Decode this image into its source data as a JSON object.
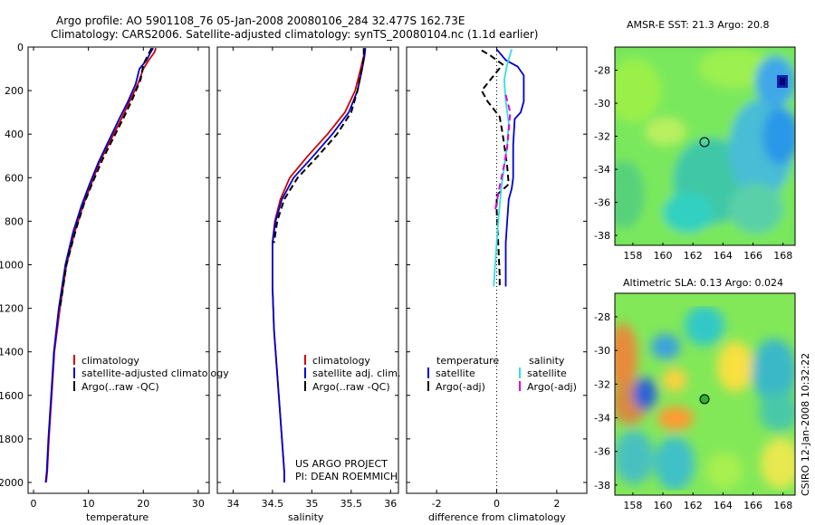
{
  "header": {
    "title_line1": "Argo profile: AO 5901108_76 05-Jan-2008 20080106_284 32.477S 162.73E",
    "title_line2": "Climatology: CARS2006. Satellite-adjusted climatology: synTS_20080104.nc (1.1d earlier)"
  },
  "side_credit": "CSIRO 12-Jan-2008 10:32:22",
  "project": {
    "line1": "US ARGO PROJECT",
    "line2": "PI: DEAN ROEMMICH"
  },
  "colors": {
    "red": "#d00000",
    "blue": "#0000d0",
    "black": "#000000",
    "cyan": "#30e0e0",
    "magenta": "#e000e0"
  },
  "chart_data": [
    {
      "type": "line",
      "xlabel": "temperature",
      "xlim": [
        -1,
        32
      ],
      "ylim": [
        2050,
        0
      ],
      "xticks": [
        0,
        10,
        20,
        30
      ],
      "yticks": [
        0,
        200,
        400,
        600,
        800,
        1000,
        1200,
        1400,
        1600,
        1800,
        2000
      ],
      "legend": [
        "climatology",
        "satellite-adjusted climatology",
        "Argo(..raw -QC)"
      ],
      "series": [
        {
          "name": "climatology",
          "color": "#d00000",
          "style": "solid",
          "x": [
            22.3,
            22.0,
            21.0,
            20.0,
            19.0,
            17.5,
            16.0,
            14.0,
            12.0,
            10.5,
            9.0,
            7.5,
            6.0,
            4.8,
            3.8,
            3.3,
            2.8,
            2.5,
            2.3
          ],
          "y": [
            5,
            25,
            60,
            100,
            170,
            250,
            330,
            430,
            530,
            630,
            730,
            850,
            1000,
            1200,
            1400,
            1600,
            1800,
            1950,
            2000
          ]
        },
        {
          "name": "satellite-adjusted climatology",
          "color": "#0000d0",
          "style": "solid",
          "x": [
            21.8,
            21.3,
            20.6,
            19.3,
            18.6,
            17.2,
            15.6,
            13.7,
            11.8,
            10.2,
            8.7,
            7.2,
            5.8,
            4.6,
            3.7,
            3.2,
            2.7,
            2.4,
            2.2
          ],
          "y": [
            5,
            25,
            60,
            100,
            170,
            250,
            330,
            430,
            530,
            630,
            730,
            850,
            1000,
            1200,
            1400,
            1600,
            1800,
            1950,
            2000
          ]
        },
        {
          "name": "Argo(..raw -QC)",
          "color": "#000000",
          "style": "dashed",
          "x": [
            21.5,
            21.0,
            20.5,
            20.0,
            19.5,
            18.0,
            16.5,
            14.5,
            12.5,
            10.8,
            9.2,
            7.7,
            6.0,
            4.8
          ],
          "y": [
            5,
            30,
            55,
            80,
            150,
            240,
            320,
            420,
            520,
            620,
            720,
            840,
            1000,
            1200
          ]
        }
      ]
    },
    {
      "type": "line",
      "xlabel": "salinity",
      "xlim": [
        33.8,
        36.1
      ],
      "ylim": [
        2050,
        0
      ],
      "xticks": [
        34,
        34.5,
        35,
        35.5,
        36
      ],
      "legend": [
        "climatology",
        "satellite adj. clim.",
        "Argo(..raw -QC)"
      ],
      "series": [
        {
          "name": "climatology",
          "color": "#d00000",
          "style": "solid",
          "x": [
            35.67,
            35.66,
            35.62,
            35.55,
            35.42,
            35.2,
            34.95,
            34.72,
            34.6,
            34.53,
            34.5,
            34.5,
            34.52,
            34.56,
            34.6,
            34.63,
            34.65,
            34.65
          ],
          "y": [
            5,
            40,
            100,
            200,
            300,
            400,
            500,
            600,
            700,
            800,
            900,
            1100,
            1300,
            1500,
            1700,
            1850,
            1950,
            2000
          ]
        },
        {
          "name": "satellite adj. clim.",
          "color": "#0000d0",
          "style": "solid",
          "x": [
            35.68,
            35.67,
            35.64,
            35.58,
            35.47,
            35.26,
            35.02,
            34.77,
            34.62,
            34.54,
            34.5,
            34.5,
            34.52,
            34.56,
            34.6,
            34.63,
            34.65,
            34.65
          ],
          "y": [
            5,
            40,
            100,
            200,
            300,
            400,
            500,
            600,
            700,
            800,
            900,
            1100,
            1300,
            1500,
            1700,
            1850,
            1950,
            2000
          ]
        },
        {
          "name": "Argo(..raw -QC)",
          "color": "#000000",
          "style": "dashed",
          "x": [
            35.66,
            35.66,
            35.63,
            35.58,
            35.5,
            35.32,
            35.08,
            34.82,
            34.65,
            34.56,
            34.52
          ],
          "y": [
            5,
            50,
            110,
            200,
            300,
            400,
            500,
            600,
            700,
            800,
            900
          ]
        }
      ]
    },
    {
      "type": "line",
      "xlabel": "difference from climatology",
      "xlim": [
        -3,
        3
      ],
      "ylim": [
        2050,
        0
      ],
      "xticks": [
        -2,
        0,
        2
      ],
      "legend_headers": [
        "temperature",
        "salinity"
      ],
      "legend": [
        "satellite",
        "Argo(-adj)",
        "satellite",
        "Argo(-adj)"
      ],
      "series": [
        {
          "name": "satellite",
          "group": "temperature",
          "color": "#0000d0",
          "style": "solid",
          "x": [
            0.0,
            0.3,
            0.7,
            0.9,
            0.9,
            0.8,
            0.6,
            0.55,
            0.55,
            0.5,
            0.4,
            0.35,
            0.3,
            0.3,
            0.3,
            0.3
          ],
          "y": [
            10,
            60,
            90,
            130,
            250,
            300,
            330,
            450,
            600,
            650,
            700,
            800,
            900,
            1000,
            1050,
            1100
          ]
        },
        {
          "name": "Argo(-adj)",
          "group": "temperature",
          "color": "#000000",
          "style": "dashed",
          "x": [
            -0.5,
            -0.2,
            0.0,
            0.2,
            -0.5,
            -0.3,
            0.1,
            0.2,
            0.3,
            0.35,
            0.4,
            0.0,
            0.0,
            0.05,
            0.1,
            0.1
          ],
          "y": [
            15,
            40,
            60,
            80,
            200,
            250,
            320,
            400,
            500,
            550,
            630,
            680,
            750,
            900,
            1050,
            1100
          ]
        },
        {
          "name": "satellite",
          "group": "salinity",
          "color": "#30e0e0",
          "style": "solid",
          "x": [
            0.5,
            0.35,
            0.25,
            0.3,
            0.4,
            0.35,
            0.25,
            0.15,
            0.05,
            -0.05,
            -0.1
          ],
          "y": [
            10,
            80,
            150,
            250,
            350,
            450,
            550,
            650,
            800,
            1000,
            1100
          ]
        },
        {
          "name": "Argo(-adj)",
          "group": "salinity",
          "color": "#e000e0",
          "style": "dashed",
          "x": [
            0.3,
            0.45,
            0.4,
            0.35,
            0.25,
            0.1,
            -0.05
          ],
          "y": [
            220,
            300,
            380,
            460,
            540,
            640,
            750
          ]
        }
      ]
    },
    {
      "type": "heatmap",
      "title": "AMSR-E SST: 21.3 Argo: 20.8",
      "xlim": [
        156.8,
        168.8
      ],
      "ylim": [
        -38.6,
        -26.6
      ],
      "xticks": [
        158,
        160,
        162,
        164,
        166,
        168
      ],
      "yticks": [
        -28,
        -30,
        -32,
        -34,
        -36,
        -38
      ],
      "marker": {
        "lon": 162.73,
        "lat": -32.477
      }
    },
    {
      "type": "heatmap",
      "title": "Altimetric SLA: 0.13 Argo: 0.024",
      "xlim": [
        156.8,
        168.8
      ],
      "ylim": [
        -38.6,
        -26.6
      ],
      "xticks": [
        158,
        160,
        162,
        164,
        166,
        168
      ],
      "yticks": [
        -28,
        -30,
        -32,
        -34,
        -36,
        -38
      ],
      "marker": {
        "lon": 162.73,
        "lat": -32.477
      }
    }
  ]
}
